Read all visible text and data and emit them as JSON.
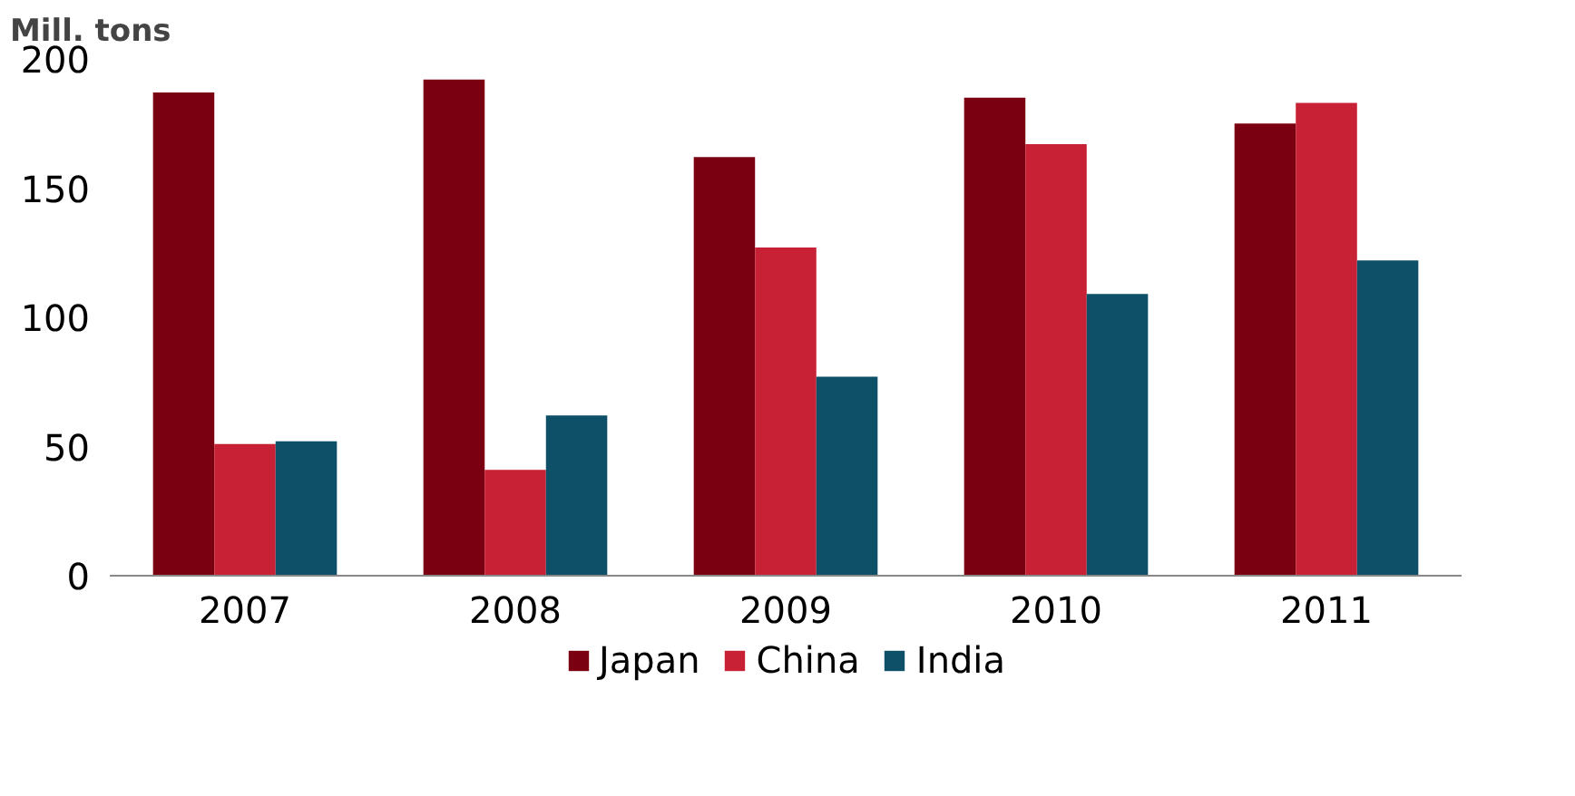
{
  "chart_data": {
    "type": "bar",
    "ylabel": "Mill. tons",
    "categories": [
      "2007",
      "2008",
      "2009",
      "2010",
      "2011"
    ],
    "series": [
      {
        "name": "Japan",
        "color": "#7a0011",
        "values": [
          187,
          192,
          162,
          185,
          175
        ]
      },
      {
        "name": "China",
        "color": "#c82035",
        "values": [
          51,
          41,
          127,
          167,
          183
        ]
      },
      {
        "name": "India",
        "color": "#0d5068",
        "values": [
          52,
          62,
          77,
          109,
          122
        ]
      }
    ],
    "ylim": [
      0,
      200
    ],
    "yticks": [
      0,
      50,
      100,
      150,
      200
    ],
    "grid": false,
    "legend": "bottom"
  }
}
